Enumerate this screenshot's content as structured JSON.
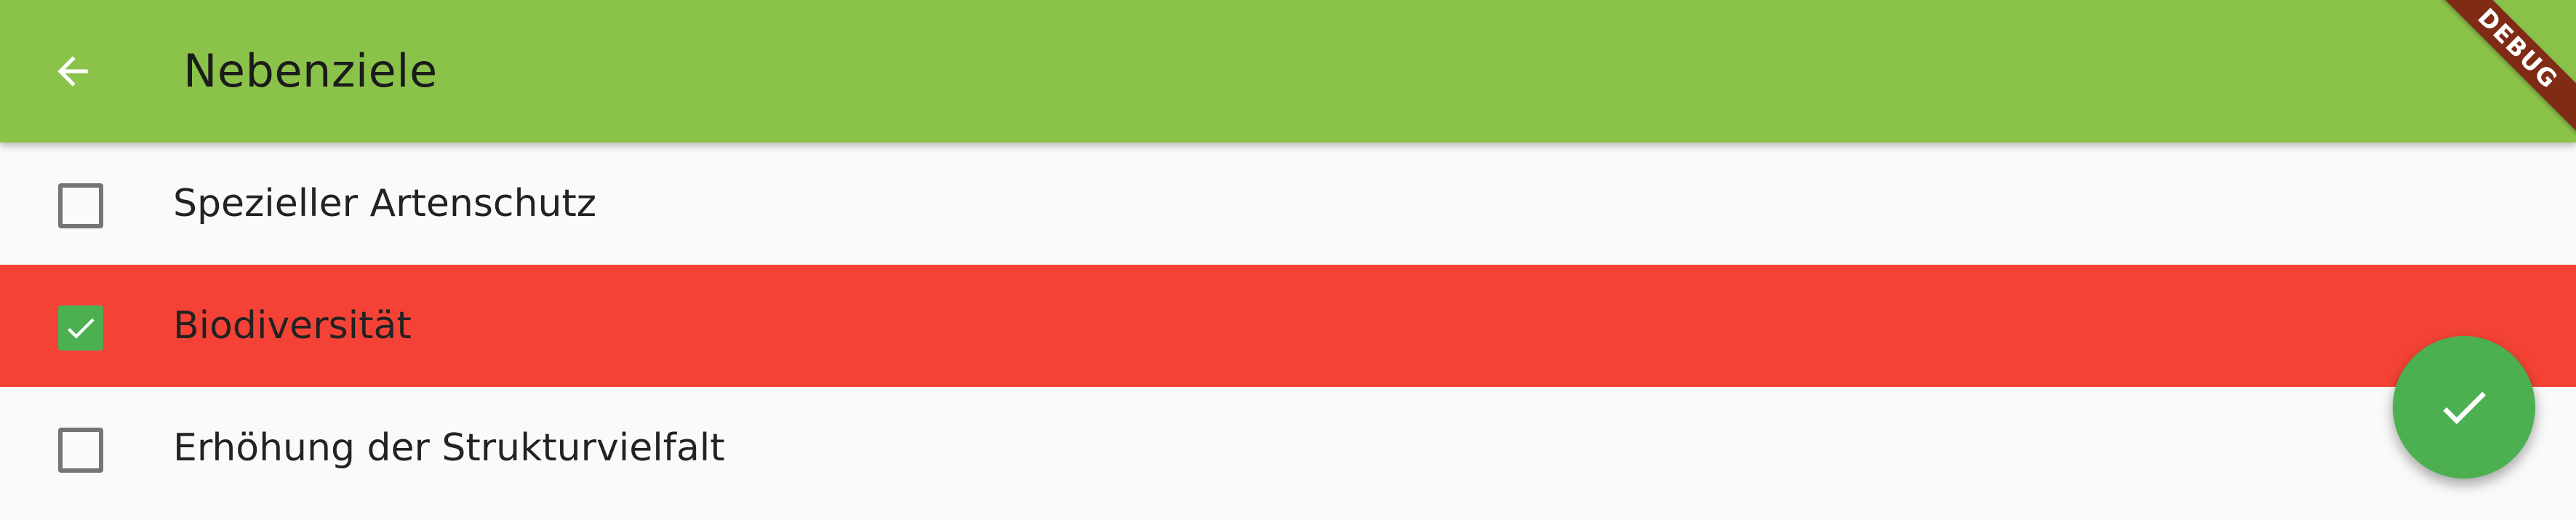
{
  "appbar": {
    "title": "Nebenziele",
    "background_color": "#8bc34a",
    "back_icon": "arrow-back-icon"
  },
  "debug_banner": {
    "label": "DEBUG",
    "color": "#7f2b16"
  },
  "list": {
    "items": [
      {
        "label": "Spezieller Artenschutz",
        "checked": false
      },
      {
        "label": "Biodiversität",
        "checked": true,
        "highlight_color": "#f44336"
      },
      {
        "label": "Erhöhung der Strukturvielfalt",
        "checked": false
      }
    ]
  },
  "fab": {
    "icon": "check-icon",
    "color": "#4caf50"
  }
}
